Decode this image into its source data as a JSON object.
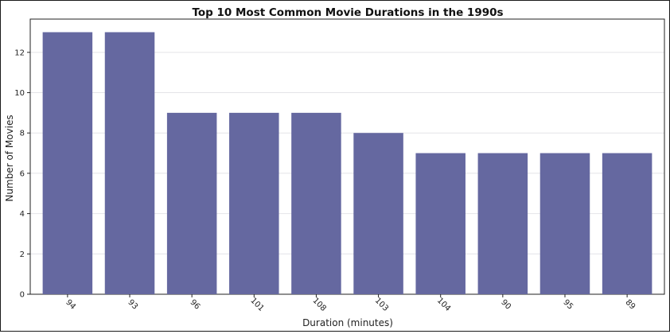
{
  "chart_data": {
    "type": "bar",
    "title": "Top 10 Most Common Movie Durations in the 1990s",
    "xlabel": "Duration (minutes)",
    "ylabel": "Number of Movies",
    "categories": [
      "94",
      "93",
      "96",
      "101",
      "108",
      "103",
      "104",
      "90",
      "95",
      "89"
    ],
    "values": [
      13,
      13,
      9,
      9,
      9,
      8,
      7,
      7,
      7,
      7
    ],
    "ylim": [
      0,
      13.65
    ],
    "yticks": [
      0,
      2,
      4,
      6,
      8,
      10,
      12
    ],
    "grid": "horizontal",
    "bar_color": "#6568a0"
  }
}
